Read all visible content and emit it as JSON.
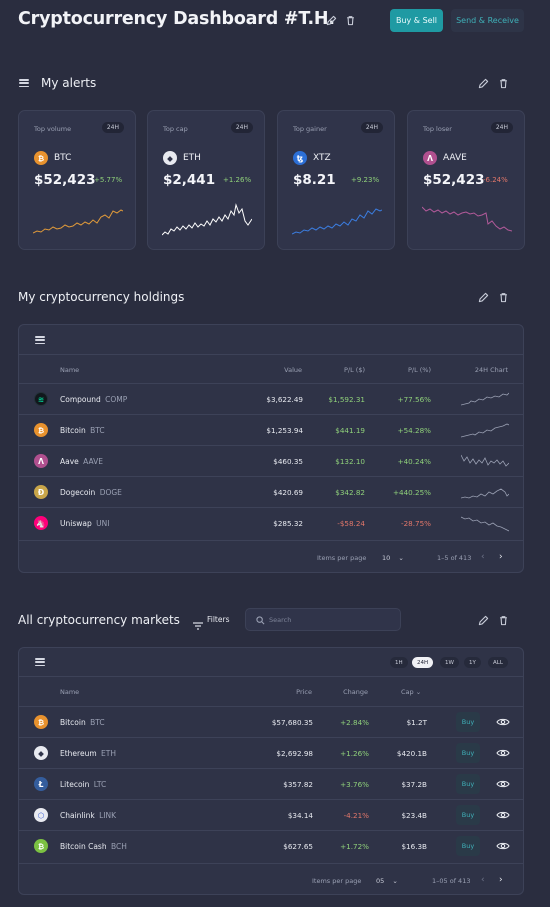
{
  "header": {
    "title": "Cryptocurrency Dashboard #T.H.",
    "buy_sell_label": "Buy & Sell",
    "send_receive_label": "Send & Receive"
  },
  "alerts": {
    "title": "My alerts",
    "cards": [
      {
        "label": "Top volume",
        "period": "24H",
        "symbol": "BTC",
        "price": "$52,423",
        "change": "+5.77%",
        "trend": "up",
        "color": "#e09a3a",
        "icon": "bitcoin-icon"
      },
      {
        "label": "Top cap",
        "period": "24H",
        "symbol": "ETH",
        "price": "$2,441",
        "change": "+1.26%",
        "trend": "up",
        "color": "#ffffff",
        "icon": "ethereum-icon"
      },
      {
        "label": "Top gainer",
        "period": "24H",
        "symbol": "XTZ",
        "price": "$8.21",
        "change": "+9.23%",
        "trend": "up",
        "color": "#3b7de0",
        "icon": "tezos-icon"
      },
      {
        "label": "Top loser",
        "period": "24H",
        "symbol": "AAVE",
        "price": "$52,423",
        "change": "-6.24%",
        "trend": "down",
        "color": "#b25a9a",
        "icon": "aave-icon"
      }
    ]
  },
  "holdings": {
    "title": "My cryptocurrency holdings",
    "columns": [
      "Name",
      "Value",
      "P/L ($)",
      "P/L (%)",
      "24H Chart"
    ],
    "rows": [
      {
        "name": "Compound",
        "ticker": "COMP",
        "value": "$3,622.49",
        "pl_usd": "$1,592.31",
        "pl_pct": "+77.56%",
        "trend": "up",
        "icon": "compound-icon"
      },
      {
        "name": "Bitcoin",
        "ticker": "BTC",
        "value": "$1,253.94",
        "pl_usd": "$441.19",
        "pl_pct": "+54.28%",
        "trend": "up",
        "icon": "bitcoin-icon"
      },
      {
        "name": "Aave",
        "ticker": "AAVE",
        "value": "$460.35",
        "pl_usd": "$132.10",
        "pl_pct": "+40.24%",
        "trend": "up",
        "icon": "aave-icon"
      },
      {
        "name": "Dogecoin",
        "ticker": "DOGE",
        "value": "$420.69",
        "pl_usd": "$342.82",
        "pl_pct": "+440.25%",
        "trend": "up",
        "icon": "dogecoin-icon"
      },
      {
        "name": "Uniswap",
        "ticker": "UNI",
        "value": "$285.32",
        "pl_usd": "-$58.24",
        "pl_pct": "-28.75%",
        "trend": "down",
        "icon": "uniswap-icon"
      }
    ],
    "footer": {
      "items_per_page_label": "Items per page",
      "items_per_page": "10",
      "range": "1–5 of 413"
    }
  },
  "markets": {
    "title": "All cryptocurrency markets",
    "filters_label": "Filters",
    "search_placeholder": "Search",
    "periods": [
      "1H",
      "24H",
      "1W",
      "1Y",
      "ALL"
    ],
    "active_period": "24H",
    "columns": [
      "Name",
      "Price",
      "Change",
      "Cap"
    ],
    "buy_label": "Buy",
    "rows": [
      {
        "name": "Bitcoin",
        "ticker": "BTC",
        "price": "$57,680.35",
        "change": "+2.84%",
        "cap": "$1.2T",
        "trend": "up",
        "icon": "bitcoin-icon"
      },
      {
        "name": "Ethereum",
        "ticker": "ETH",
        "price": "$2,692.98",
        "change": "+1.26%",
        "cap": "$420.1B",
        "trend": "up",
        "icon": "ethereum-icon"
      },
      {
        "name": "Litecoin",
        "ticker": "LTC",
        "price": "$357.82",
        "change": "+3.76%",
        "cap": "$37.2B",
        "trend": "up",
        "icon": "litecoin-icon"
      },
      {
        "name": "Chainlink",
        "ticker": "LINK",
        "price": "$34.14",
        "change": "-4.21%",
        "cap": "$23.4B",
        "trend": "down",
        "icon": "chainlink-icon"
      },
      {
        "name": "Bitcoin Cash",
        "ticker": "BCH",
        "price": "$627.65",
        "change": "+1.72%",
        "cap": "$16.3B",
        "trend": "up",
        "icon": "bitcoin-cash-icon"
      }
    ],
    "footer": {
      "items_per_page_label": "Items per page",
      "items_per_page": "05",
      "range": "1–05 of 413"
    }
  }
}
